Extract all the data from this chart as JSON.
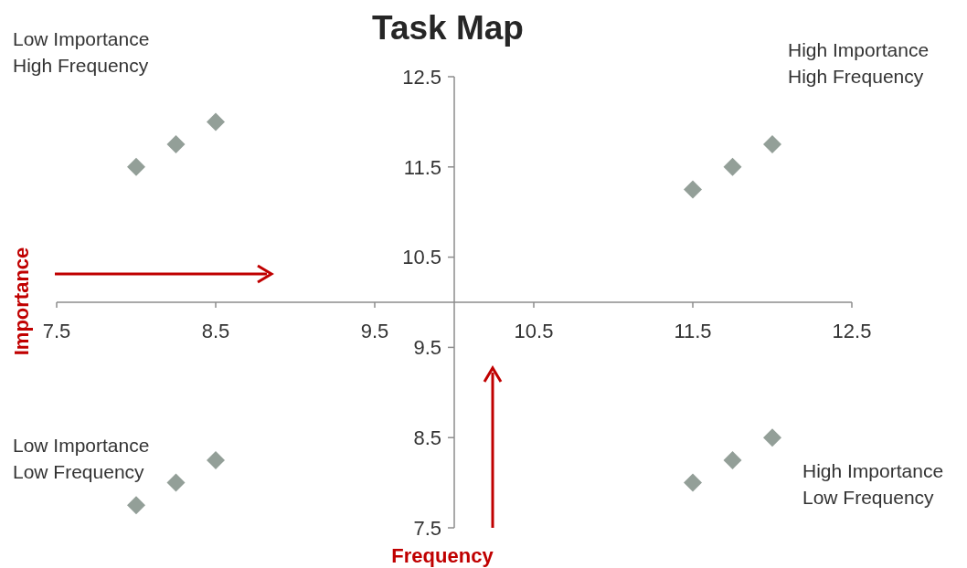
{
  "chart_data": {
    "type": "scatter",
    "title": "Task Map",
    "xlabel": "Frequency",
    "ylabel": "Importance",
    "x": [
      8.0,
      8.25,
      8.5,
      11.5,
      11.75,
      12.0,
      8.0,
      8.25,
      8.5,
      11.5,
      11.75,
      12.0
    ],
    "series": [
      {
        "color": "#939f98",
        "values": [
          11.5,
          11.75,
          12.0,
          11.25,
          11.5,
          11.75,
          7.75,
          8.0,
          8.25,
          8.0,
          8.25,
          8.5
        ]
      }
    ],
    "xlim": [
      7.5,
      12.5
    ],
    "xticks": [
      7.5,
      8.5,
      9.5,
      10.5,
      11.5,
      12.5
    ],
    "ylim": [
      7.5,
      12.5
    ],
    "yticks": [
      7.5,
      8.5,
      9.5,
      10.5,
      11.5,
      12.5
    ],
    "marker": "diamond",
    "grid": false,
    "annotations": [
      "Low Importance\nHigh Frequency",
      "High Importance\nHigh Frequency",
      "Low Importance\nLow Frequency",
      "High Importance\nLow Frequency"
    ]
  }
}
